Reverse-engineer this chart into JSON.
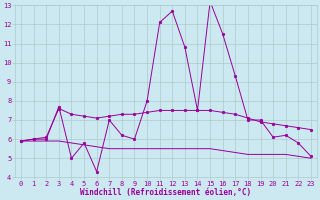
{
  "xlabel": "Windchill (Refroidissement éolien,°C)",
  "bg_color": "#cce8f0",
  "grid_color": "#aacccc",
  "line_color": "#990099",
  "xlim": [
    -0.5,
    23.5
  ],
  "ylim": [
    4,
    13
  ],
  "xticks": [
    0,
    1,
    2,
    3,
    4,
    5,
    6,
    7,
    8,
    9,
    10,
    11,
    12,
    13,
    14,
    15,
    16,
    17,
    18,
    19,
    20,
    21,
    22,
    23
  ],
  "yticks": [
    4,
    5,
    6,
    7,
    8,
    9,
    10,
    11,
    12,
    13
  ],
  "line1_x": [
    0,
    1,
    2,
    3,
    4,
    5,
    6,
    7,
    8,
    9,
    10,
    11,
    12,
    13,
    14,
    15,
    16,
    17,
    18,
    19,
    20,
    21,
    22,
    23
  ],
  "line1_y": [
    5.9,
    6.0,
    6.0,
    7.7,
    5.0,
    5.8,
    4.3,
    7.0,
    6.2,
    6.0,
    8.0,
    12.1,
    12.7,
    10.8,
    7.5,
    13.2,
    11.5,
    9.3,
    7.0,
    7.0,
    6.1,
    6.2,
    5.8,
    5.1
  ],
  "line2_x": [
    0,
    1,
    2,
    3,
    4,
    5,
    6,
    7,
    8,
    9,
    10,
    11,
    12,
    13,
    14,
    15,
    16,
    17,
    18,
    19,
    20,
    21,
    22,
    23
  ],
  "line2_y": [
    5.9,
    6.0,
    6.1,
    7.6,
    7.3,
    7.2,
    7.1,
    7.2,
    7.3,
    7.3,
    7.4,
    7.5,
    7.5,
    7.5,
    7.5,
    7.5,
    7.4,
    7.3,
    7.1,
    6.9,
    6.8,
    6.7,
    6.6,
    6.5
  ],
  "line3_x": [
    0,
    1,
    2,
    3,
    4,
    5,
    6,
    7,
    8,
    9,
    10,
    11,
    12,
    13,
    14,
    15,
    16,
    17,
    18,
    19,
    20,
    21,
    22,
    23
  ],
  "line3_y": [
    5.9,
    5.9,
    5.9,
    5.9,
    5.8,
    5.7,
    5.6,
    5.5,
    5.5,
    5.5,
    5.5,
    5.5,
    5.5,
    5.5,
    5.5,
    5.5,
    5.4,
    5.3,
    5.2,
    5.2,
    5.2,
    5.2,
    5.1,
    5.0
  ],
  "tick_fontsize": 5.0,
  "xlabel_fontsize": 5.5
}
